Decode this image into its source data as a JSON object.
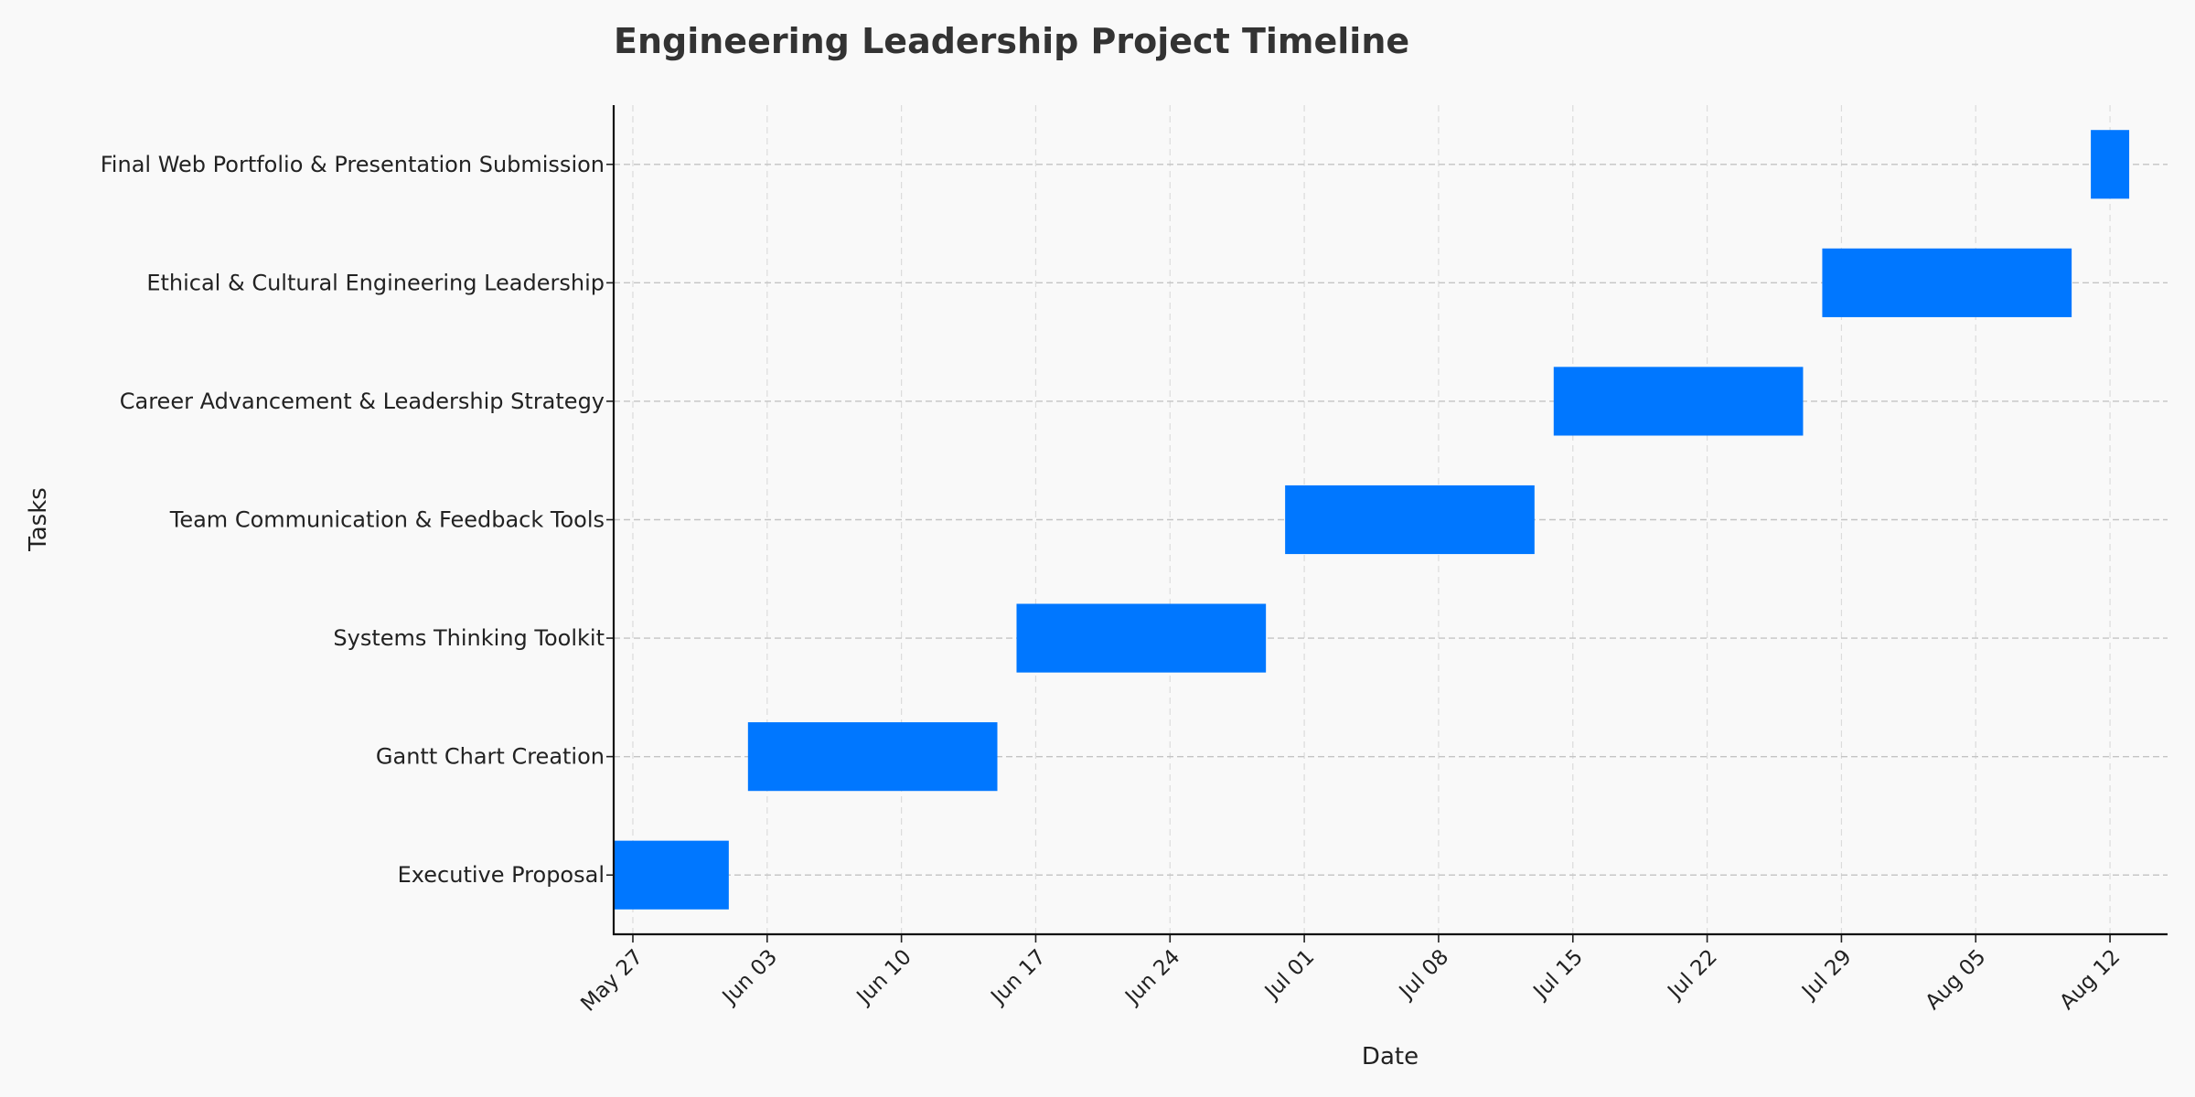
{
  "chart_data": {
    "type": "gantt",
    "title": "Engineering Leadership Project Timeline",
    "xlabel": "Date",
    "ylabel": "Tasks",
    "x_axis": {
      "type": "date",
      "range": [
        "2024-05-26",
        "2024-08-15"
      ]
    },
    "x_ticks": [
      {
        "date": "2024-05-27",
        "label": "May 27"
      },
      {
        "date": "2024-06-03",
        "label": "Jun 03"
      },
      {
        "date": "2024-06-10",
        "label": "Jun 10"
      },
      {
        "date": "2024-06-17",
        "label": "Jun 17"
      },
      {
        "date": "2024-06-24",
        "label": "Jun 24"
      },
      {
        "date": "2024-07-01",
        "label": "Jul 01"
      },
      {
        "date": "2024-07-08",
        "label": "Jul 08"
      },
      {
        "date": "2024-07-15",
        "label": "Jul 15"
      },
      {
        "date": "2024-07-22",
        "label": "Jul 22"
      },
      {
        "date": "2024-07-29",
        "label": "Jul 29"
      },
      {
        "date": "2024-08-05",
        "label": "Aug 05"
      },
      {
        "date": "2024-08-12",
        "label": "Aug 12"
      }
    ],
    "grid": true,
    "bar_color": "#0077ff",
    "tasks": [
      {
        "name": "Executive Proposal",
        "start": "2024-05-26",
        "end": "2024-06-01"
      },
      {
        "name": "Gantt Chart Creation",
        "start": "2024-06-02",
        "end": "2024-06-15"
      },
      {
        "name": "Systems Thinking Toolkit",
        "start": "2024-06-16",
        "end": "2024-06-29"
      },
      {
        "name": "Team Communication & Feedback Tools",
        "start": "2024-06-30",
        "end": "2024-07-13"
      },
      {
        "name": "Career Advancement & Leadership Strategy",
        "start": "2024-07-14",
        "end": "2024-07-27"
      },
      {
        "name": "Ethical & Cultural Engineering Leadership",
        "start": "2024-07-28",
        "end": "2024-08-10"
      },
      {
        "name": "Final Web Portfolio & Presentation Submission",
        "start": "2024-08-11",
        "end": "2024-08-13"
      }
    ]
  }
}
